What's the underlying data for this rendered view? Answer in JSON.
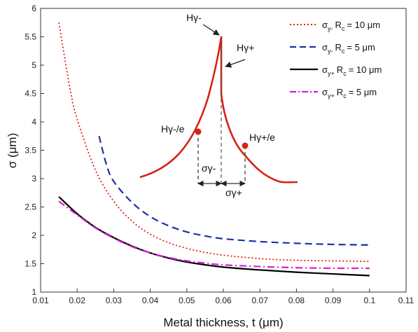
{
  "chart_data": {
    "type": "line",
    "xlabel": "Metal thickness, t (μm)",
    "ylabel": "σ (μm)",
    "xlim": [
      0.01,
      0.11
    ],
    "ylim": [
      1,
      6
    ],
    "x_ticks": [
      "0.01",
      "0.02",
      "0.03",
      "0.04",
      "0.05",
      "0.06",
      "0.07",
      "0.08",
      "0.09",
      "0.1",
      "0.11"
    ],
    "y_ticks": [
      "1",
      "1.5",
      "2",
      "2.5",
      "3",
      "3.5",
      "4",
      "4.5",
      "5",
      "5.5",
      "6"
    ],
    "legend_position": "top-right",
    "series": [
      {
        "legend": {
          "sigma_sub": "y-",
          "rc": "10 μm"
        },
        "color": "#e0201b",
        "style": "dotted",
        "x": [
          0.015,
          0.018,
          0.02,
          0.025,
          0.03,
          0.035,
          0.04,
          0.045,
          0.05,
          0.055,
          0.06,
          0.07,
          0.08,
          0.09,
          0.1
        ],
        "y": [
          5.75,
          4.6,
          4.05,
          3.15,
          2.6,
          2.25,
          2.02,
          1.87,
          1.77,
          1.7,
          1.65,
          1.59,
          1.56,
          1.55,
          1.54
        ]
      },
      {
        "legend": {
          "sigma_sub": "y-",
          "rc": "5 μm"
        },
        "color": "#1f2fa8",
        "style": "dashed",
        "x": [
          0.026,
          0.028,
          0.03,
          0.035,
          0.04,
          0.045,
          0.05,
          0.055,
          0.06,
          0.07,
          0.08,
          0.09,
          0.1
        ],
        "y": [
          3.75,
          3.25,
          2.95,
          2.58,
          2.33,
          2.17,
          2.06,
          1.99,
          1.94,
          1.89,
          1.86,
          1.84,
          1.83
        ]
      },
      {
        "legend": {
          "sigma_sub": "y+",
          "rc": "10 μm"
        },
        "color": "#000000",
        "style": "solid",
        "x": [
          0.015,
          0.02,
          0.025,
          0.03,
          0.035,
          0.04,
          0.045,
          0.05,
          0.055,
          0.06,
          0.07,
          0.08,
          0.09,
          0.1
        ],
        "y": [
          2.68,
          2.38,
          2.14,
          1.96,
          1.81,
          1.69,
          1.6,
          1.53,
          1.48,
          1.44,
          1.39,
          1.35,
          1.32,
          1.29
        ]
      },
      {
        "legend": {
          "sigma_sub": "y+",
          "rc": "5 μm"
        },
        "color": "#d81ed8",
        "style": "dashdot",
        "x": [
          0.015,
          0.02,
          0.025,
          0.03,
          0.035,
          0.04,
          0.045,
          0.05,
          0.055,
          0.06,
          0.07,
          0.08,
          0.09,
          0.1
        ],
        "y": [
          2.6,
          2.36,
          2.13,
          1.95,
          1.8,
          1.69,
          1.61,
          1.55,
          1.51,
          1.48,
          1.45,
          1.43,
          1.42,
          1.42
        ]
      }
    ],
    "inset": {
      "color": "#d42417",
      "labels": {
        "peak_minus": "Hγ-",
        "peak_plus": "Hγ+",
        "e_minus": "Hγ-/e",
        "e_plus": "Hγ+/e",
        "sigma_minus": "σγ-",
        "sigma_plus": "σγ+"
      }
    }
  }
}
